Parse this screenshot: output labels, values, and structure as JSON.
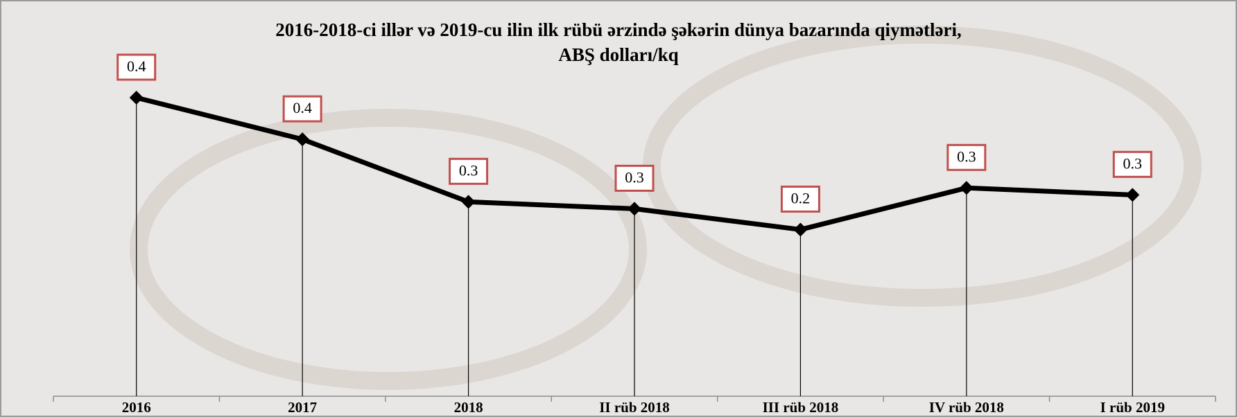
{
  "chart_data": {
    "type": "line",
    "title": "2016-2018-ci illər və 2019-cu ilin ilk rübü ərzində şəkərin dünya bazarında qiymətləri,",
    "subtitle": "ABŞ dolları/kq",
    "categories": [
      "2016",
      "2017",
      "2018",
      "II rüb 2018",
      "III rüb 2018",
      "IV rüb 2018",
      "I rüb 2019"
    ],
    "values": [
      0.43,
      0.37,
      0.28,
      0.27,
      0.24,
      0.3,
      0.29
    ],
    "value_labels": [
      "0.4",
      "0.4",
      "0.3",
      "0.3",
      "0.2",
      "0.3",
      "0.3"
    ],
    "color": "#000000"
  }
}
